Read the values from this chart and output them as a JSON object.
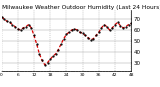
{
  "title": "Milwaukee Weather Outdoor Humidity (Last 24 Hours)",
  "y_values": [
    72,
    70,
    68,
    67,
    65,
    63,
    61,
    60,
    62,
    63,
    65,
    62,
    55,
    47,
    38,
    32,
    28,
    30,
    33,
    36,
    38,
    42,
    47,
    52,
    56,
    58,
    60,
    61,
    60,
    58,
    57,
    55,
    53,
    51,
    52,
    55,
    58,
    62,
    65,
    63,
    60,
    62,
    65,
    67,
    64,
    62,
    63,
    65,
    66
  ],
  "line_color": "#dd0000",
  "marker_color": "#000000",
  "bg_color": "#ffffff",
  "grid_color": "#999999",
  "ylim": [
    22,
    78
  ],
  "yticks": [
    30,
    40,
    50,
    60,
    70
  ],
  "ylabel_fontsize": 4.0,
  "title_fontsize": 4.2,
  "xlabel_fontsize": 3.2,
  "vgrid_interval": 6,
  "n_points": 49
}
